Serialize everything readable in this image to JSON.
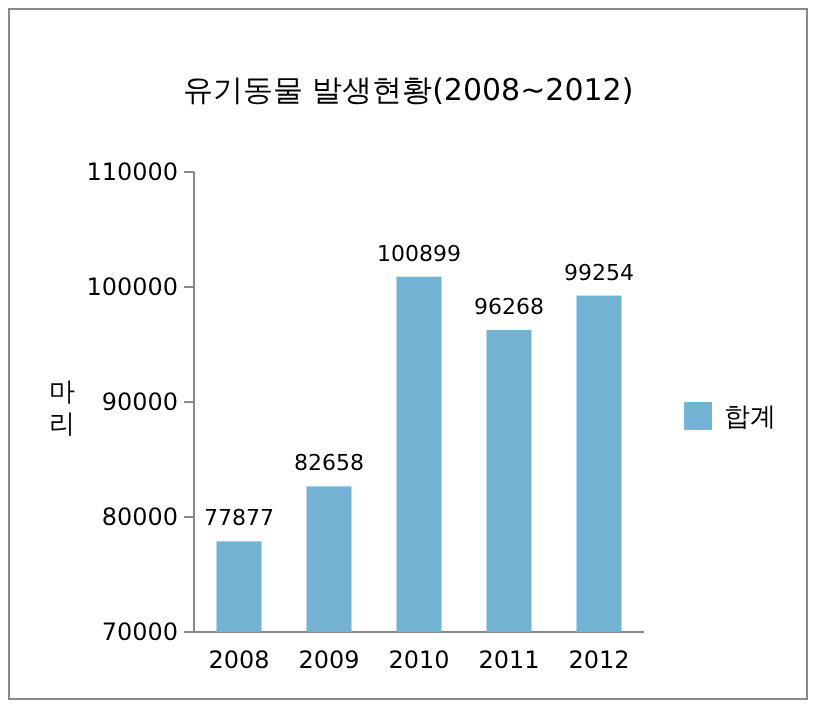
{
  "chart_data": {
    "type": "bar",
    "title": "유기동물 발생현황(2008~2012)",
    "ylabel": "마리",
    "categories": [
      "2008",
      "2009",
      "2010",
      "2011",
      "2012"
    ],
    "series": [
      {
        "name": "합계",
        "color": "#72b2d2",
        "values": [
          77877,
          82658,
          100899,
          96268,
          99254
        ]
      }
    ],
    "ylim": [
      70000,
      110000
    ],
    "yticks": [
      70000,
      80000,
      90000,
      100000,
      110000
    ],
    "data_labels": true,
    "legend": "right",
    "grid": false
  }
}
